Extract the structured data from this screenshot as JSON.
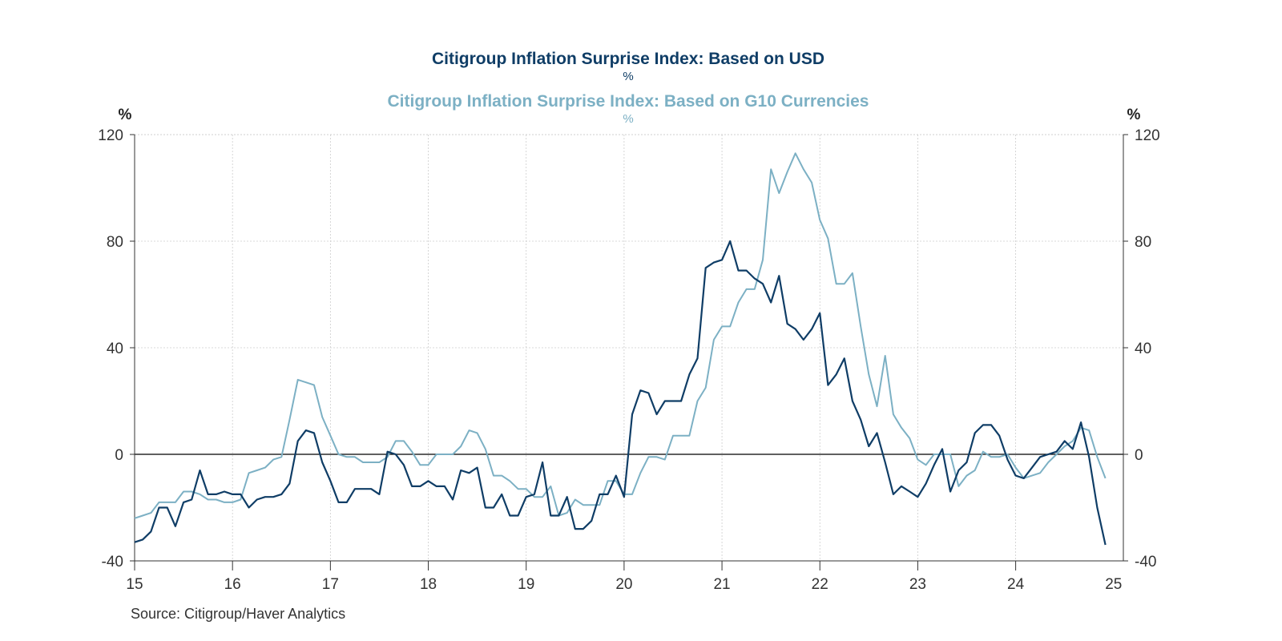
{
  "colors": {
    "usd": "#0f3d66",
    "g10": "#7cb0c4",
    "axis": "#333333",
    "grid": "#cccccc",
    "zero": "#000000",
    "text": "#333333"
  },
  "chart_data": {
    "type": "line",
    "titles": [
      {
        "text": "Citigroup Inflation Surprise Index: Based on USD",
        "unit": "%",
        "series": "usd"
      },
      {
        "text": "Citigroup Inflation Surprise Index: Based on G10 Currencies",
        "unit": "%",
        "series": "g10"
      }
    ],
    "left_axis_unit": "%",
    "right_axis_unit": "%",
    "ylim": [
      -40,
      120
    ],
    "yticks": [
      -40,
      0,
      40,
      80,
      120
    ],
    "xlim": [
      2015,
      2025.1
    ],
    "xtick_labels": [
      "15",
      "16",
      "17",
      "18",
      "19",
      "20",
      "21",
      "22",
      "23",
      "24",
      "25"
    ],
    "grid": true,
    "source": "Source:  Citigroup/Haver Analytics",
    "x": [
      2015.0,
      2015.083,
      2015.167,
      2015.25,
      2015.333,
      2015.417,
      2015.5,
      2015.583,
      2015.667,
      2015.75,
      2015.833,
      2015.917,
      2016.0,
      2016.083,
      2016.167,
      2016.25,
      2016.333,
      2016.417,
      2016.5,
      2016.583,
      2016.667,
      2016.75,
      2016.833,
      2016.917,
      2017.0,
      2017.083,
      2017.167,
      2017.25,
      2017.333,
      2017.417,
      2017.5,
      2017.583,
      2017.667,
      2017.75,
      2017.833,
      2017.917,
      2018.0,
      2018.083,
      2018.167,
      2018.25,
      2018.333,
      2018.417,
      2018.5,
      2018.583,
      2018.667,
      2018.75,
      2018.833,
      2018.917,
      2019.0,
      2019.083,
      2019.167,
      2019.25,
      2019.333,
      2019.417,
      2019.5,
      2019.583,
      2019.667,
      2019.75,
      2019.833,
      2019.917,
      2020.0,
      2020.083,
      2020.167,
      2020.25,
      2020.333,
      2020.417,
      2020.5,
      2020.583,
      2020.667,
      2020.75,
      2020.833,
      2020.917,
      2021.0,
      2021.083,
      2021.167,
      2021.25,
      2021.333,
      2021.417,
      2021.5,
      2021.583,
      2021.667,
      2021.75,
      2021.833,
      2021.917,
      2022.0,
      2022.083,
      2022.167,
      2022.25,
      2022.333,
      2022.417,
      2022.5,
      2022.583,
      2022.667,
      2022.75,
      2022.833,
      2022.917,
      2023.0,
      2023.083,
      2023.167,
      2023.25,
      2023.333,
      2023.417,
      2023.5,
      2023.583,
      2023.667,
      2023.75,
      2023.833,
      2023.917,
      2024.0,
      2024.083,
      2024.167,
      2024.25,
      2024.333,
      2024.417,
      2024.5,
      2024.583,
      2024.667,
      2024.75,
      2024.833,
      2024.917
    ],
    "series": [
      {
        "key": "usd",
        "values": [
          -33,
          -32,
          -29,
          -20,
          -20,
          -27,
          -18,
          -17,
          -6,
          -15,
          -15,
          -14,
          -15,
          -15,
          -20,
          -17,
          -16,
          -16,
          -15,
          -11,
          5,
          9,
          8,
          -3,
          -10,
          -18,
          -18,
          -13,
          -13,
          -13,
          -15,
          1,
          0,
          -4,
          -12,
          -12,
          -10,
          -12,
          -12,
          -17,
          -6,
          -7,
          -5,
          -20,
          -20,
          -15,
          -23,
          -23,
          -16,
          -15,
          -3,
          -23,
          -23,
          -16,
          -28,
          -28,
          -25,
          -15,
          -15,
          -8,
          -16,
          15,
          24,
          23,
          15,
          20,
          20,
          20,
          30,
          36,
          70,
          72,
          73,
          80,
          69,
          69,
          66,
          64,
          57,
          67,
          49,
          47,
          43,
          47,
          53,
          26,
          30,
          36,
          20,
          13,
          3,
          8,
          -3,
          -15,
          -12,
          -14,
          -16,
          -11,
          -4,
          2,
          -14,
          -6,
          -3,
          8,
          11,
          11,
          7,
          -2,
          -8,
          -9,
          -5,
          -1,
          0,
          1,
          5,
          2,
          12,
          -1,
          -20,
          -34
        ]
      },
      {
        "key": "g10",
        "values": [
          -24,
          -23,
          -22,
          -18,
          -18,
          -18,
          -14,
          -14,
          -15,
          -17,
          -17,
          -18,
          -18,
          -17,
          -7,
          -6,
          -5,
          -2,
          -1,
          13,
          28,
          27,
          26,
          14,
          7,
          0,
          -1,
          -1,
          -3,
          -3,
          -3,
          -1,
          5,
          5,
          1,
          -4,
          -4,
          0,
          0,
          0,
          3,
          9,
          8,
          2,
          -8,
          -8,
          -10,
          -13,
          -13,
          -16,
          -16,
          -12,
          -23,
          -22,
          -17,
          -19,
          -19,
          -19,
          -10,
          -10,
          -15,
          -15,
          -7,
          -1,
          -1,
          -2,
          7,
          7,
          7,
          20,
          25,
          43,
          48,
          48,
          57,
          62,
          62,
          73,
          107,
          98,
          106,
          113,
          107,
          102,
          88,
          81,
          64,
          64,
          68,
          48,
          30,
          18,
          37,
          15,
          10,
          6,
          -2,
          -4,
          0,
          0,
          0,
          -12,
          -8,
          -6,
          1,
          -1,
          -1,
          0,
          -5,
          -9,
          -8,
          -7,
          -3,
          0,
          3,
          5,
          10,
          9,
          -1,
          -9
        ]
      }
    ]
  }
}
